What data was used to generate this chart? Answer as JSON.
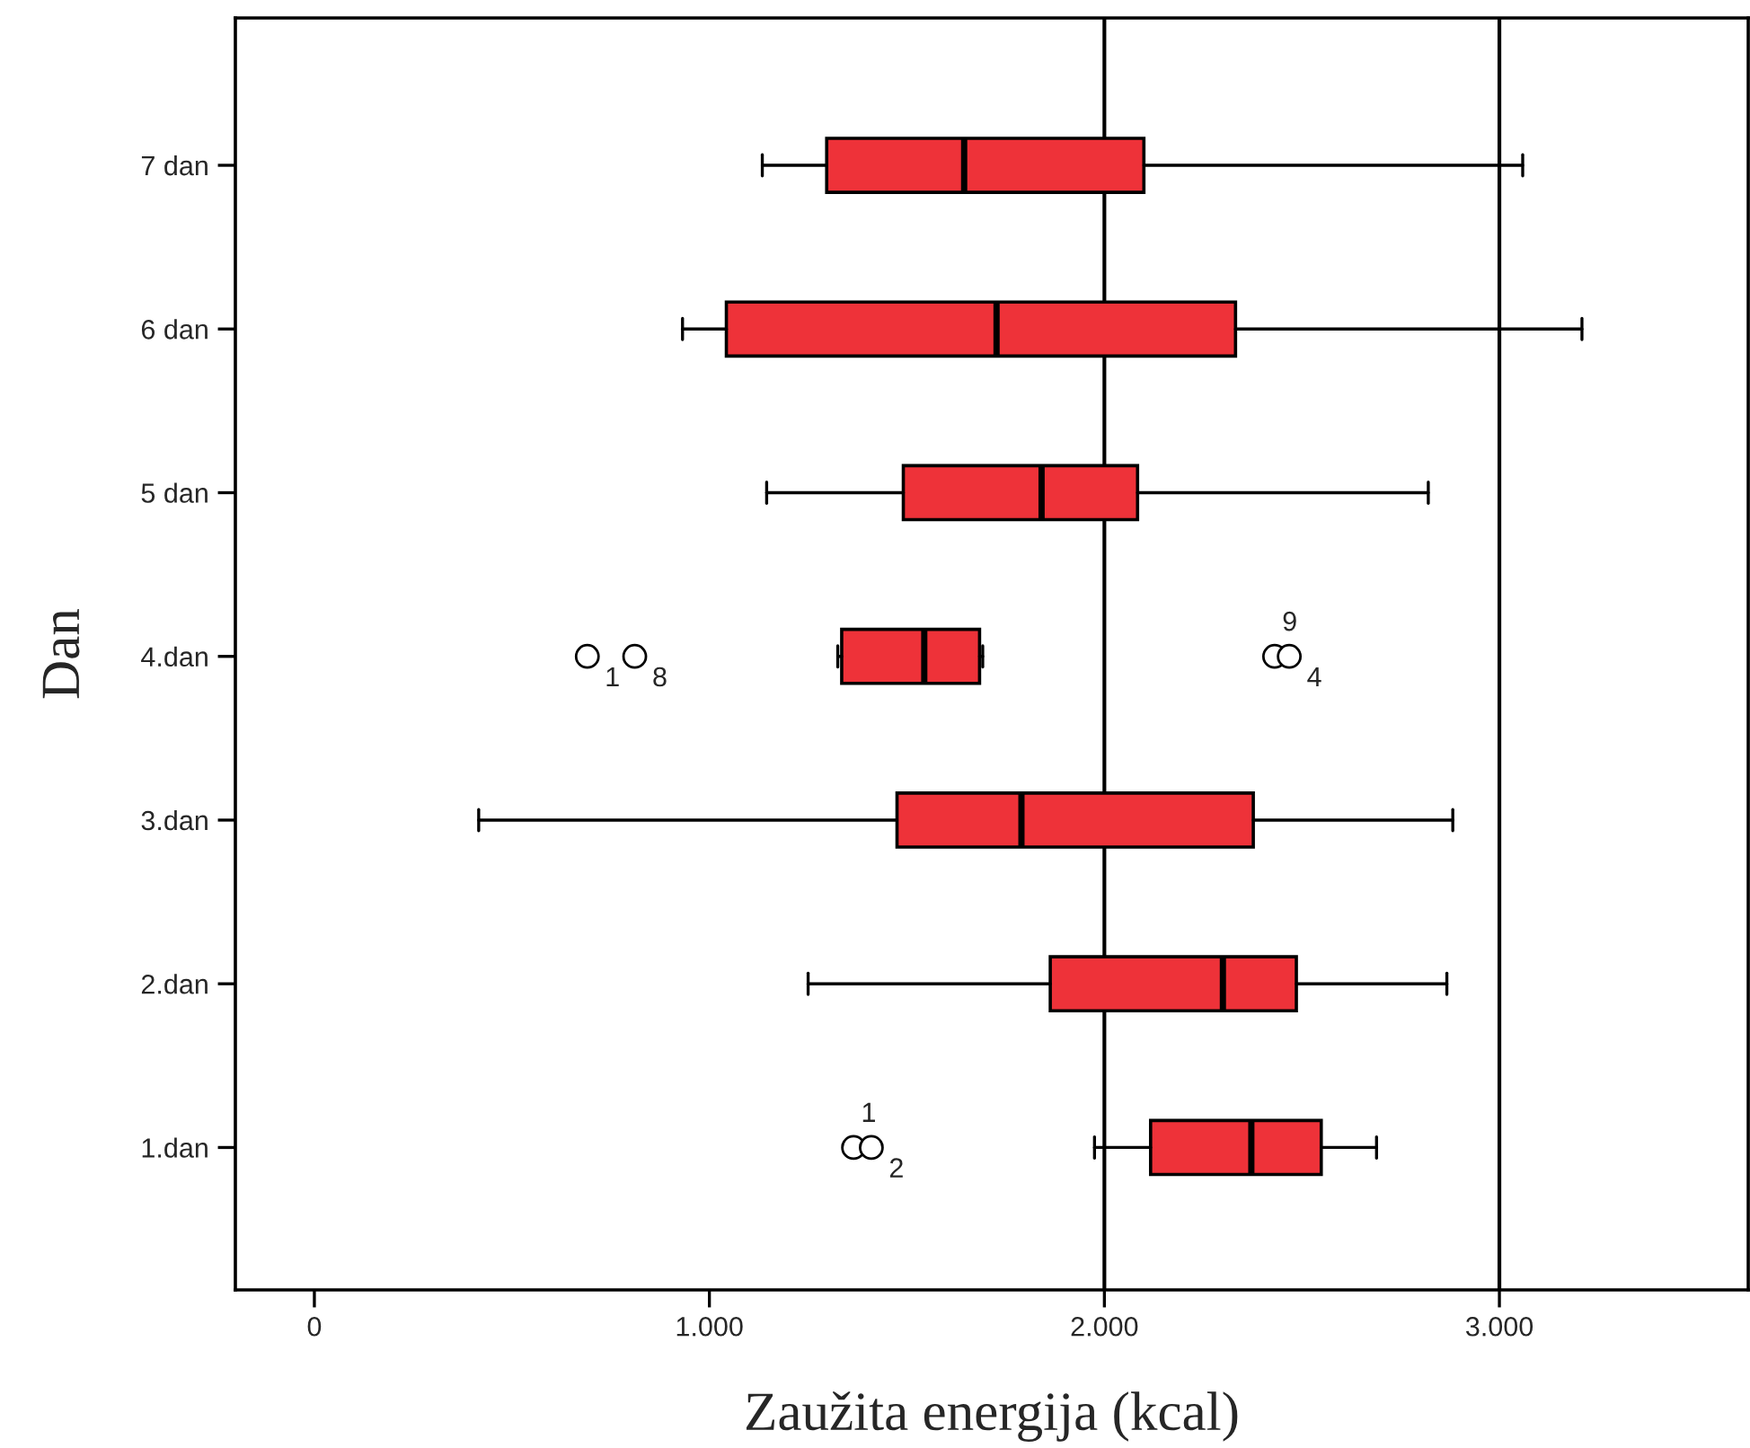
{
  "chart_data": {
    "type": "box",
    "orientation": "horizontal",
    "xlabel": "Zaužita energija (kcal)",
    "ylabel": "Dan",
    "categories": [
      "7 dan",
      "6 dan",
      "5 dan",
      "4.dan",
      "3.dan",
      "2.dan",
      "1.dan"
    ],
    "color": "#ee3239",
    "boxes": [
      {
        "low": 1134,
        "q1": 1297,
        "median": 1645,
        "q3": 2100,
        "high": 3059
      },
      {
        "low": 932,
        "q1": 1043,
        "median": 1727,
        "q3": 2332,
        "high": 3209
      },
      {
        "low": 1145,
        "q1": 1491,
        "median": 1841,
        "q3": 2084,
        "high": 2820
      },
      {
        "low": 1325,
        "q1": 1335,
        "median": 1544,
        "q3": 1684,
        "high": 1692,
        "outliers": [
          691,
          811,
          2431,
          2468
        ]
      },
      {
        "low": 416,
        "q1": 1475,
        "median": 1790,
        "q3": 2377,
        "high": 2882
      },
      {
        "low": 1250,
        "q1": 1863,
        "median": 2300,
        "q3": 2486,
        "high": 2867
      },
      {
        "low": 1975,
        "q1": 2117,
        "median": 2372,
        "q3": 2549,
        "high": 2689,
        "outliers": [
          1365,
          1410
        ]
      }
    ],
    "annotations": [
      "1",
      "8",
      "9",
      "4",
      "1",
      "2"
    ],
    "xlim": [
      -200,
      3630
    ],
    "xticks": [
      {
        "value": 0,
        "label": "0"
      },
      {
        "value": 1000,
        "label": "1.000"
      },
      {
        "value": 2000,
        "label": "2.000"
      },
      {
        "value": 3000,
        "label": "3.000"
      }
    ],
    "ref_lines": [
      {
        "axis": "x",
        "value": 2000,
        "color": "#000000"
      },
      {
        "axis": "x",
        "value": 3000,
        "color": "#000000"
      }
    ],
    "grid": false
  }
}
